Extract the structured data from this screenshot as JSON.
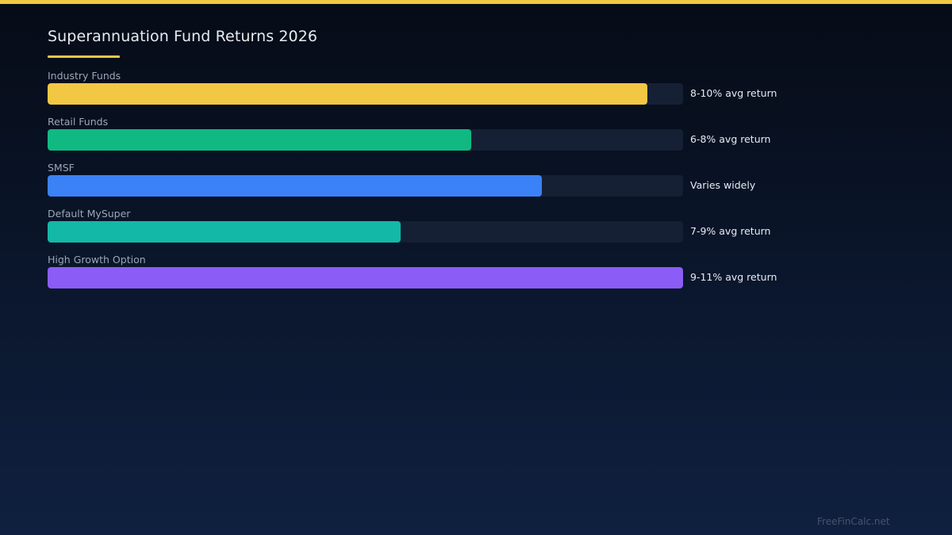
{
  "header": {
    "title": "Superannuation Fund Returns 2026"
  },
  "footer": {
    "credit": "FreeFinCalc.net"
  },
  "colors": {
    "accent": "#f2c744",
    "track": "#162035"
  },
  "chart_data": {
    "type": "bar",
    "orientation": "horizontal",
    "title": "Superannuation Fund Returns 2026",
    "categories": [
      "Industry Funds",
      "Retail Funds",
      "SMSF",
      "Default MySuper",
      "High Growth Option"
    ],
    "value_labels": [
      "8-10% avg return",
      "6-8% avg return",
      "Varies widely",
      "7-9% avg return",
      "9-11% avg return"
    ],
    "fill_fractions": [
      0.944,
      0.667,
      0.778,
      0.556,
      1.0
    ],
    "colors": [
      "#f2c744",
      "#10b981",
      "#3b82f6",
      "#14b8a6",
      "#8b5cf6"
    ],
    "grid": false,
    "legend": "none"
  }
}
